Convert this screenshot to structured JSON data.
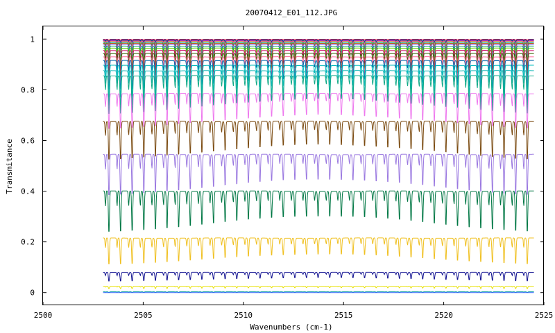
{
  "chart_data": {
    "type": "line",
    "title": "20070412_E01_112.JPG",
    "xlabel": "Wavenumbers (cm-1)",
    "ylabel": "Transmitance",
    "xlim": [
      2500,
      2525
    ],
    "ylim": [
      -0.05,
      1.05
    ],
    "grid": false,
    "legend": "none",
    "x_ticks": [
      2500,
      2505,
      2510,
      2515,
      2520,
      2525
    ],
    "x_tick_labels": [
      "2500",
      "2505",
      "2510",
      "2515",
      "2520",
      "2525"
    ],
    "y_ticks": [
      0,
      0.2,
      0.4,
      0.6,
      0.8,
      1
    ],
    "y_tick_labels": [
      "0",
      "0.2",
      "0.4",
      "0.6",
      "0.8",
      "1"
    ],
    "x_range": [
      2503.0,
      2524.5
    ],
    "line_period_cm": 0.58,
    "series": [
      {
        "baseline": 0.999,
        "depth": 0.004,
        "color": "#ff0000"
      },
      {
        "baseline": 0.997,
        "depth": 0.008,
        "color": "#0000ff"
      },
      {
        "baseline": 0.995,
        "depth": 0.012,
        "color": "#00aa00"
      },
      {
        "baseline": 0.993,
        "depth": 0.016,
        "color": "#ff00ff"
      },
      {
        "baseline": 0.99,
        "depth": 0.02,
        "color": "#ddaa00"
      },
      {
        "baseline": 0.987,
        "depth": 0.026,
        "color": "#00aaaa"
      },
      {
        "baseline": 0.983,
        "depth": 0.032,
        "color": "#aa5500"
      },
      {
        "baseline": 0.978,
        "depth": 0.04,
        "color": "#9966ff"
      },
      {
        "baseline": 0.972,
        "depth": 0.05,
        "color": "#009966"
      },
      {
        "baseline": 0.964,
        "depth": 0.06,
        "color": "#66cc00"
      },
      {
        "baseline": 0.955,
        "depth": 0.07,
        "color": "#cc0066"
      },
      {
        "baseline": 0.943,
        "depth": 0.08,
        "color": "#336600"
      },
      {
        "baseline": 0.93,
        "depth": 0.09,
        "color": "#ff6699"
      },
      {
        "baseline": 0.915,
        "depth": 0.1,
        "color": "#0066aa"
      },
      {
        "baseline": 0.896,
        "depth": 0.11,
        "color": "#00bbbb"
      },
      {
        "baseline": 0.875,
        "depth": 0.12,
        "color": "#22bbbb"
      },
      {
        "baseline": 0.855,
        "depth": 0.13,
        "color": "#11aa88"
      },
      {
        "baseline": 0.785,
        "depth": 0.12,
        "color": "#ee77ee"
      },
      {
        "baseline": 0.675,
        "depth": 0.13,
        "color": "#7a4a10"
      },
      {
        "baseline": 0.545,
        "depth": 0.14,
        "color": "#9a78e0"
      },
      {
        "baseline": 0.4,
        "depth": 0.14,
        "color": "#007744"
      },
      {
        "baseline": 0.215,
        "depth": 0.09,
        "color": "#f0c020"
      },
      {
        "baseline": 0.08,
        "depth": 0.03,
        "color": "#101090"
      },
      {
        "baseline": 0.025,
        "depth": 0.008,
        "color": "#e8e000"
      },
      {
        "baseline": 0.003,
        "depth": 0.002,
        "color": "#009999"
      },
      {
        "baseline": 0.0,
        "depth": 0.0,
        "color": "#3366ff"
      }
    ]
  }
}
